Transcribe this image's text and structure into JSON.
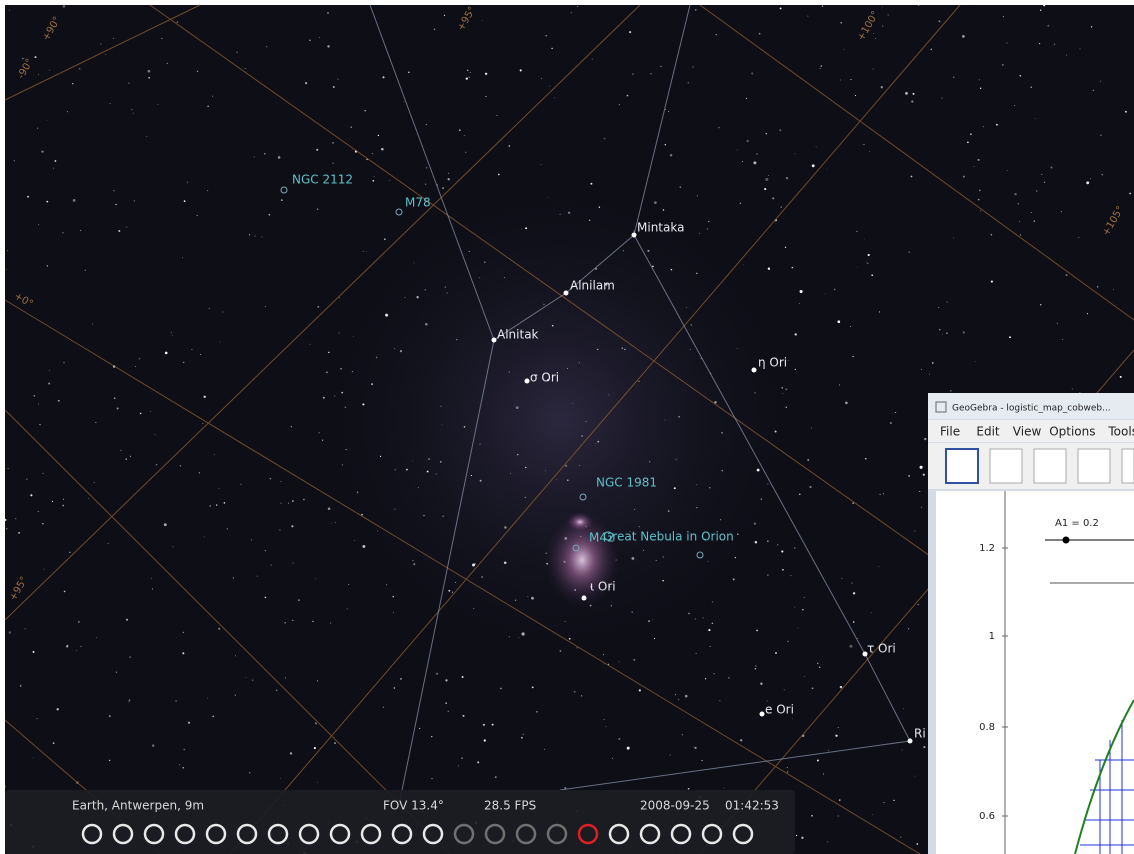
{
  "sky": {
    "objects": [
      {
        "label": "NGC 2112",
        "kind": "nebula"
      },
      {
        "label": "M78",
        "kind": "nebula"
      },
      {
        "label": "Mintaka",
        "kind": "star"
      },
      {
        "label": "Alnilam",
        "kind": "star"
      },
      {
        "label": "Alnitak",
        "kind": "star"
      },
      {
        "label": "σ Ori",
        "kind": "star"
      },
      {
        "label": "η Ori",
        "kind": "star"
      },
      {
        "label": "NGC 1981",
        "kind": "nebula"
      },
      {
        "label": "M42",
        "kind": "nebula"
      },
      {
        "label": "Great Nebula in Orion",
        "kind": "nebula"
      },
      {
        "label": "ι Ori",
        "kind": "star"
      },
      {
        "label": "τ Ori",
        "kind": "star"
      },
      {
        "label": "e Ori",
        "kind": "star"
      },
      {
        "label": "Ri",
        "kind": "star"
      }
    ],
    "grid_labels": [
      "-90°",
      "+90°",
      "+95°",
      "+100°",
      "+105°",
      "+0°",
      "+95°"
    ]
  },
  "status": {
    "location": "Earth, Antwerpen, 9m",
    "fov": "FOV 13.4°",
    "fps": "28.5 FPS",
    "date": "2008-09-25",
    "time": "01:42:53"
  },
  "geogebra": {
    "title": "GeoGebra - logistic_map_cobweb...",
    "menu": [
      "File",
      "Edit",
      "View",
      "Options",
      "Tools"
    ],
    "slider": "A1 = 0.2",
    "y_labels": [
      "1.2",
      "1",
      "0.8",
      "0.6"
    ]
  }
}
